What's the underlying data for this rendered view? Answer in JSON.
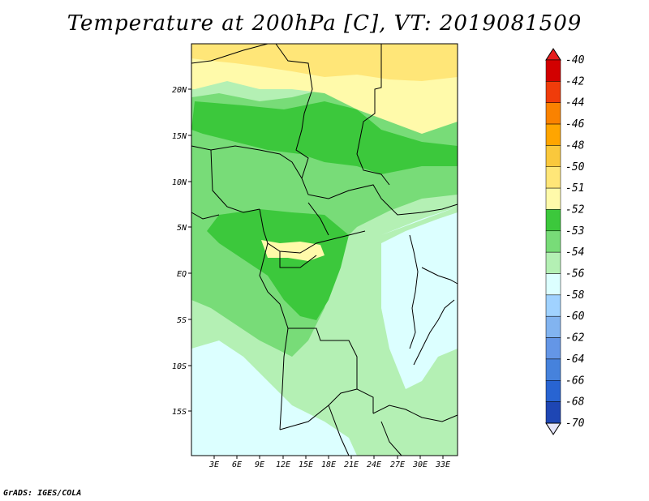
{
  "title": "Temperature at 200hPa [C], VT: 2019081509",
  "footer": "GrADS: IGES/COLA",
  "map": {
    "lat_labels": [
      "20N",
      "15N",
      "10N",
      "5N",
      "EQ",
      "5S",
      "10S",
      "15S"
    ],
    "lon_labels": [
      "3E",
      "6E",
      "9E",
      "12E",
      "15E",
      "18E",
      "21E",
      "24E",
      "27E",
      "30E",
      "33E"
    ]
  },
  "colorbar": {
    "levels": [
      {
        "label": "-40",
        "color": "#d20000"
      },
      {
        "label": "-42",
        "color": "#f03c0a"
      },
      {
        "label": "-44",
        "color": "#fa8200"
      },
      {
        "label": "-46",
        "color": "#ffa500"
      },
      {
        "label": "-48",
        "color": "#fac83c"
      },
      {
        "label": "-50",
        "color": "#ffe678"
      },
      {
        "label": "-51",
        "color": "#fffaaa"
      },
      {
        "label": "-52",
        "color": "#3cc83c"
      },
      {
        "label": "-53",
        "color": "#78dc78"
      },
      {
        "label": "-54",
        "color": "#b4f0b4"
      },
      {
        "label": "-56",
        "color": "#dcffff"
      },
      {
        "label": "-58",
        "color": "#a0d2ff"
      },
      {
        "label": "-60",
        "color": "#82b4f0"
      },
      {
        "label": "-62",
        "color": "#6496e6"
      },
      {
        "label": "-64",
        "color": "#4682dc"
      },
      {
        "label": "-66",
        "color": "#2864d2"
      },
      {
        "label": "-68",
        "color": "#1e46b4"
      },
      {
        "label": "-70",
        "color": "#0a1e6e"
      }
    ],
    "top_color": "#e61e1e",
    "bottom_color": "#e6e6fa"
  }
}
